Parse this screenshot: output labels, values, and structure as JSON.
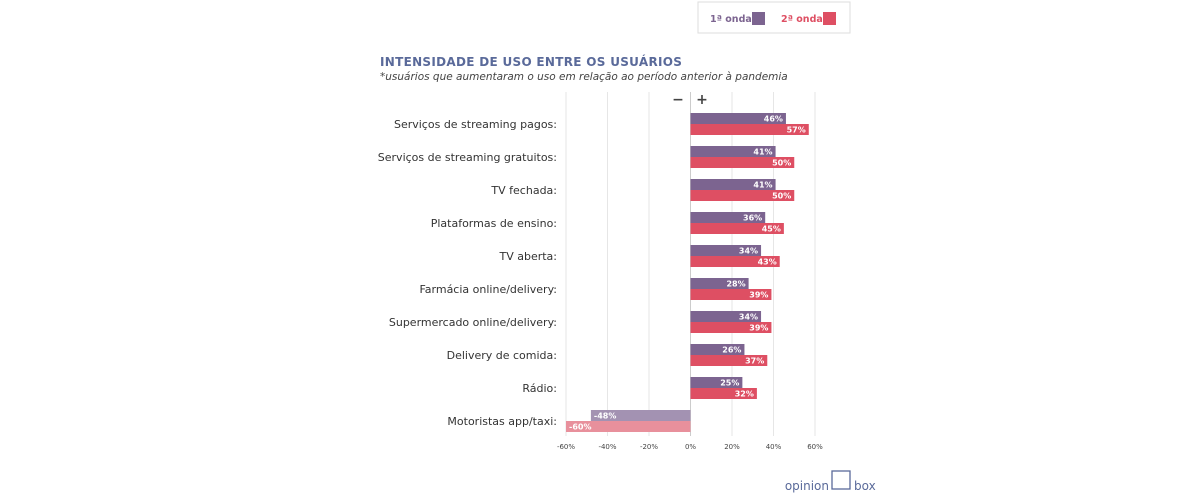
{
  "chart_data": {
    "type": "bar",
    "orientation": "horizontal",
    "title": "INTENSIDADE DE USO ENTRE OS USUÁRIOS",
    "subtitle": "*usuários que aumentaram o uso em relação ao período anterior à pandemia",
    "categories": [
      "Serviços de streaming pagos:",
      "Serviços de streaming gratuitos:",
      "TV fechada:",
      "Plataformas de ensino:",
      "TV aberta:",
      "Farmácia online/delivery:",
      "Supermercado online/delivery:",
      "Delivery de comida:",
      "Rádio:",
      "Motoristas app/taxi:"
    ],
    "series": [
      {
        "name": "1ª onda",
        "color": "#7c6490",
        "values": [
          46,
          41,
          41,
          36,
          34,
          28,
          34,
          26,
          25,
          -48
        ],
        "labels": [
          "46%",
          "41%",
          "41%",
          "36%",
          "34%",
          "28%",
          "34%",
          "26%",
          "25%",
          "-48%"
        ]
      },
      {
        "name": "2ª onda",
        "color": "#de4f63",
        "values": [
          57,
          50,
          50,
          45,
          43,
          39,
          39,
          37,
          32,
          -60
        ],
        "labels": [
          "57%",
          "50%",
          "50%",
          "45%",
          "43%",
          "39%",
          "39%",
          "37%",
          "32%",
          "-60%"
        ]
      }
    ],
    "negative_colors": [
      "#a392b2",
      "#e8909c"
    ],
    "xlim": [
      -60,
      60
    ],
    "xticks": [
      -60,
      -40,
      -20,
      0,
      20,
      40,
      60
    ],
    "xtick_labels": [
      "-60%",
      "-40%",
      "-20%",
      "0%",
      "20%",
      "40%",
      "60%"
    ],
    "sign_labels": {
      "minus": "−",
      "plus": "+"
    },
    "grid": true,
    "legend_position": "top-right"
  },
  "brand": {
    "logo_left": "opinion",
    "logo_right": "box"
  }
}
